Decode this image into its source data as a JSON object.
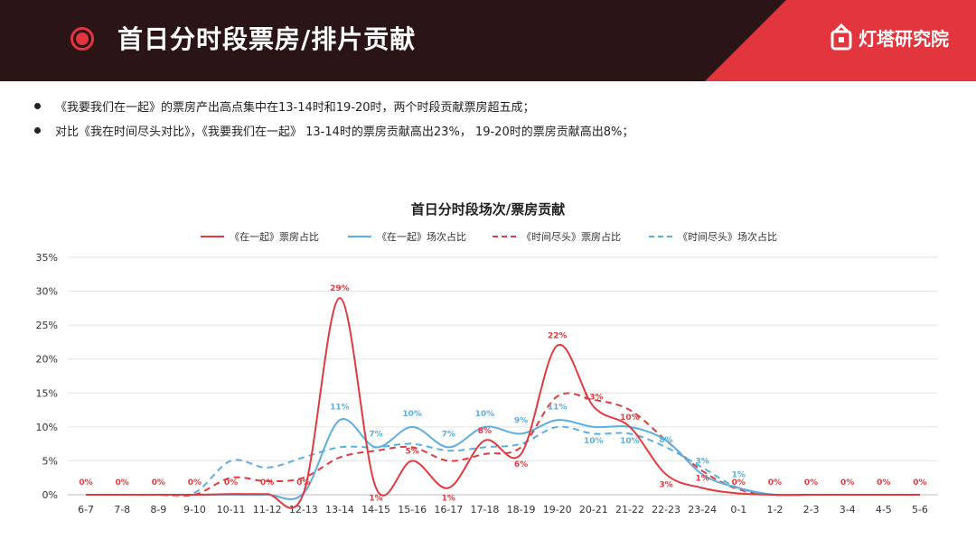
{
  "header": {
    "title": "首日分时段票房/排片贡献",
    "logo_text": "灯塔研究院"
  },
  "bullets": [
    "《我要我们在一起》的票房产出高点集中在13-14时和19-20时，两个时段贡献票房超五成；",
    "对比《我在时间尽头对比》，《我要我们在一起》 13-14时的票房贡献高出23%， 19-20时的票房贡献高出8%；"
  ],
  "colors": {
    "header_dark": "#2b1416",
    "accent_red": "#e3353e",
    "series_red": "#e03a3e",
    "series_blue": "#5aaee0"
  },
  "chart_data": {
    "type": "line",
    "title": "首日分时段场次/票房贡献",
    "categories": [
      "6-7",
      "7-8",
      "8-9",
      "9-10",
      "10-11",
      "11-12",
      "12-13",
      "13-14",
      "14-15",
      "15-16",
      "16-17",
      "17-18",
      "18-19",
      "19-20",
      "20-21",
      "21-22",
      "22-23",
      "23-24",
      "0-1",
      "1-2",
      "2-3",
      "3-4",
      "4-5",
      "5-6"
    ],
    "y_ticks": [
      "0%",
      "5%",
      "10%",
      "15%",
      "20%",
      "25%",
      "30%",
      "35%"
    ],
    "ylim": [
      0,
      35
    ],
    "legend_position": "top",
    "series": [
      {
        "name": "《在一起》票房占比",
        "color": "#e03a3e",
        "dashed": false,
        "values": [
          0,
          0,
          0,
          0,
          0.1,
          0.1,
          0.2,
          29,
          1,
          5,
          1,
          8,
          6,
          22,
          13,
          10,
          3,
          1,
          0.2,
          0,
          0,
          0,
          0,
          0
        ]
      },
      {
        "name": "《在一起》场次占比",
        "color": "#5aaee0",
        "dashed": false,
        "values": [
          0,
          0,
          0,
          0,
          0,
          0,
          0.2,
          11,
          7,
          10,
          7,
          10,
          9,
          11,
          10,
          10,
          8,
          3,
          1,
          0,
          0,
          0,
          0,
          0
        ]
      },
      {
        "name": "《时间尽头》票房占比",
        "color": "#e03a3e",
        "dashed": true,
        "values": [
          0,
          0,
          0,
          0,
          2.5,
          2,
          2.5,
          5.5,
          6.5,
          7,
          5,
          6,
          7,
          14.5,
          14,
          12.5,
          8,
          3.5,
          0.8,
          0,
          0,
          0,
          0,
          0
        ]
      },
      {
        "name": "《时间尽头》场次占比",
        "color": "#5aaee0",
        "dashed": true,
        "values": [
          0,
          0,
          0,
          0.3,
          5,
          4,
          5.5,
          7,
          7,
          7.5,
          6.5,
          7,
          7.5,
          10,
          9,
          9,
          7,
          4,
          1,
          0,
          0,
          0,
          0,
          0
        ]
      }
    ],
    "data_labels": [
      {
        "category": "6-7",
        "value": 0,
        "text": "0%",
        "series": "red"
      },
      {
        "category": "7-8",
        "value": 0,
        "text": "0%",
        "series": "red"
      },
      {
        "category": "8-9",
        "value": 0,
        "text": "0%",
        "series": "red"
      },
      {
        "category": "9-10",
        "value": 0,
        "text": "0%",
        "series": "red"
      },
      {
        "category": "10-11",
        "value": 0,
        "text": "0%",
        "series": "red"
      },
      {
        "category": "11-12",
        "value": 0,
        "text": "0%",
        "series": "red"
      },
      {
        "category": "12-13",
        "value": 0,
        "text": "0%",
        "series": "red"
      },
      {
        "category": "13-14",
        "value": 29,
        "text": "29%",
        "series": "red"
      },
      {
        "category": "14-15",
        "value": 1,
        "text": "1%",
        "series": "red"
      },
      {
        "category": "15-16",
        "value": 5,
        "text": "5%",
        "series": "red"
      },
      {
        "category": "16-17",
        "value": 1,
        "text": "1%",
        "series": "red"
      },
      {
        "category": "17-18",
        "value": 8,
        "text": "8%",
        "series": "red"
      },
      {
        "category": "18-19",
        "value": 6,
        "text": "6%",
        "series": "red"
      },
      {
        "category": "19-20",
        "value": 22,
        "text": "22%",
        "series": "red"
      },
      {
        "category": "20-21",
        "value": 13,
        "text": "13%",
        "series": "red"
      },
      {
        "category": "21-22",
        "value": 10,
        "text": "10%",
        "series": "red"
      },
      {
        "category": "22-23",
        "value": 3,
        "text": "3%",
        "series": "red"
      },
      {
        "category": "23-24",
        "value": 1,
        "text": "1%",
        "series": "red"
      },
      {
        "category": "0-1",
        "value": 0,
        "text": "0%",
        "series": "red"
      },
      {
        "category": "1-2",
        "value": 0,
        "text": "0%",
        "series": "red"
      },
      {
        "category": "2-3",
        "value": 0,
        "text": "0%",
        "series": "red"
      },
      {
        "category": "3-4",
        "value": 0,
        "text": "0%",
        "series": "red"
      },
      {
        "category": "4-5",
        "value": 0,
        "text": "0%",
        "series": "red"
      },
      {
        "category": "5-6",
        "value": 0,
        "text": "0%",
        "series": "red"
      },
      {
        "category": "13-14",
        "value": 11,
        "text": "11%",
        "series": "blue"
      },
      {
        "category": "14-15",
        "value": 7,
        "text": "7%",
        "series": "blue"
      },
      {
        "category": "15-16",
        "value": 10,
        "text": "10%",
        "series": "blue"
      },
      {
        "category": "16-17",
        "value": 7,
        "text": "7%",
        "series": "blue"
      },
      {
        "category": "17-18",
        "value": 10,
        "text": "10%",
        "series": "blue"
      },
      {
        "category": "18-19",
        "value": 9,
        "text": "9%",
        "series": "blue"
      },
      {
        "category": "19-20",
        "value": 11,
        "text": "11%",
        "series": "blue"
      },
      {
        "category": "20-21",
        "value": 10,
        "text": "10%",
        "series": "blue"
      },
      {
        "category": "21-22",
        "value": 10,
        "text": "10%",
        "series": "blue"
      },
      {
        "category": "22-23",
        "value": 8,
        "text": "8%",
        "series": "blue"
      },
      {
        "category": "23-24",
        "value": 3,
        "text": "3%",
        "series": "blue"
      },
      {
        "category": "0-1",
        "value": 1,
        "text": "1%",
        "series": "blue"
      }
    ]
  }
}
